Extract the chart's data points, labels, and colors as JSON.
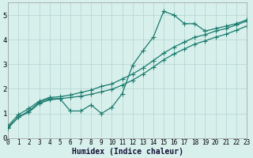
{
  "xlabel": "Humidex (Indice chaleur)",
  "bg_color": "#d8f0ec",
  "line_color": "#1a7a6e",
  "grid_color": "#b8d8d4",
  "xmin": 0,
  "xmax": 23,
  "ymin": 0,
  "ymax": 5.5,
  "yticks": [
    0,
    1,
    2,
    3,
    4,
    5
  ],
  "xticks": [
    0,
    1,
    2,
    3,
    4,
    5,
    6,
    7,
    8,
    9,
    10,
    11,
    12,
    13,
    14,
    15,
    16,
    17,
    18,
    19,
    20,
    21,
    22,
    23
  ],
  "line_wiggly_x": [
    0,
    1,
    2,
    3,
    4,
    5,
    6,
    7,
    8,
    9,
    10,
    11,
    12,
    13,
    14,
    15,
    16,
    17,
    18,
    19,
    20,
    21,
    22,
    23
  ],
  "line_wiggly_y": [
    0.45,
    0.85,
    1.1,
    1.45,
    1.6,
    1.6,
    1.1,
    1.1,
    1.35,
    1.0,
    1.25,
    1.8,
    2.95,
    3.55,
    4.1,
    5.15,
    5.0,
    4.65,
    4.65,
    4.35,
    4.45,
    4.55,
    4.65,
    4.8
  ],
  "line_upper_x": [
    0,
    1,
    2,
    3,
    4,
    5,
    6,
    7,
    8,
    9,
    10,
    11,
    12,
    13,
    14,
    15,
    16,
    17,
    18,
    19,
    20,
    21,
    22,
    23
  ],
  "line_upper_y": [
    0.5,
    0.95,
    1.2,
    1.5,
    1.65,
    1.68,
    1.75,
    1.85,
    1.95,
    2.1,
    2.2,
    2.4,
    2.6,
    2.85,
    3.15,
    3.45,
    3.7,
    3.9,
    4.1,
    4.2,
    4.35,
    4.45,
    4.6,
    4.75
  ],
  "line_lower_x": [
    0,
    1,
    2,
    3,
    4,
    5,
    6,
    7,
    8,
    9,
    10,
    11,
    12,
    13,
    14,
    15,
    16,
    17,
    18,
    19,
    20,
    21,
    22,
    23
  ],
  "line_lower_y": [
    0.4,
    0.85,
    1.05,
    1.4,
    1.55,
    1.6,
    1.65,
    1.7,
    1.78,
    1.88,
    1.98,
    2.15,
    2.35,
    2.6,
    2.88,
    3.18,
    3.42,
    3.62,
    3.82,
    3.95,
    4.1,
    4.22,
    4.38,
    4.55
  ],
  "marker_size": 2.5,
  "linewidth": 0.9,
  "xlabel_fontsize": 7,
  "tick_fontsize": 5.5
}
